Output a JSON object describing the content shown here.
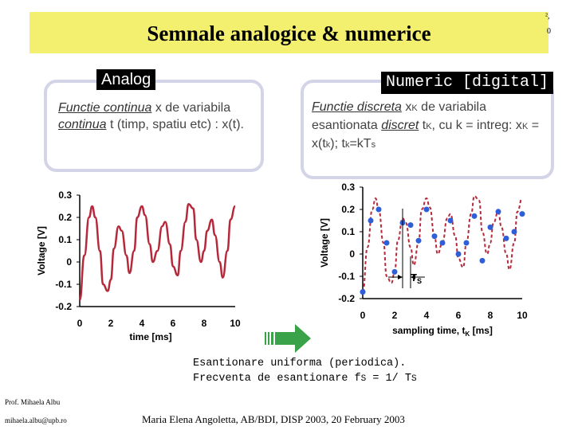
{
  "slide": {
    "title": "Semnale analogice & numerice",
    "corner_1": "²,",
    "corner_2": "0"
  },
  "analog": {
    "label": "Analog",
    "desc_em1": "Functie continua",
    "desc_t1": " x de variabila ",
    "desc_em2": "continua",
    "desc_t2": " t (timp, spatiu etc) : x(t)."
  },
  "digital": {
    "label": "Numeric [digital]",
    "desc_em1": "Functie discreta",
    "desc_t1": " x",
    "desc_s1": "K",
    "desc_t2": " de variabila esantionata ",
    "desc_em2": "discret",
    "desc_t3": "  t",
    "desc_s2": "K",
    "desc_t4": ", cu k = intreg: x",
    "desc_s3": "K",
    "desc_t5": " = x(t",
    "desc_s4": "k",
    "desc_t6": "); t",
    "desc_s5": "k",
    "desc_t7": "=kT",
    "desc_s6": "s"
  },
  "note": {
    "line1": "Esantionare uniforma (periodica).",
    "line2_a": "Frecventa de esantionare f",
    "line2_s1": "S",
    "line2_b": " = 1/ T",
    "line2_s2": "S"
  },
  "footer": {
    "prof_name": "Prof. Mihaela Albu",
    "prof_email": "mihaela.albu@upb.ro",
    "citation": "Maria Elena Angoletta, AB/BDI, DISP 2003, 20 February 2003"
  },
  "colors": {
    "title_bg": "#f2f06e",
    "curve": "#b5293a",
    "samples": "#2e5fd8",
    "arrow": "#3aa34a"
  },
  "chart_data": [
    {
      "type": "line",
      "xlabel": "time [ms]",
      "ylabel": "Voltage [V]",
      "xlim": [
        0,
        10
      ],
      "ylim": [
        -0.2,
        0.3
      ],
      "xticks": [
        "0",
        "2",
        "4",
        "6",
        "8",
        "10"
      ],
      "yticks": [
        "0.3",
        "0.2",
        "0.1",
        "0",
        "-0.1",
        "-0.2"
      ],
      "series": [
        {
          "x": [
            0.0,
            0.3,
            0.6,
            0.8,
            1.0,
            1.3,
            1.5,
            1.8,
            2.0,
            2.2,
            2.5,
            2.7,
            3.0,
            3.2,
            3.5,
            3.7,
            4.0,
            4.2,
            4.5,
            4.7,
            5.0,
            5.3,
            5.5,
            5.8,
            6.0,
            6.3,
            6.5,
            6.8,
            7.0,
            7.3,
            7.5,
            7.8,
            8.0,
            8.2,
            8.5,
            8.7,
            9.0,
            9.2,
            9.5,
            9.7,
            10.0
          ],
          "y": [
            -0.17,
            0.03,
            0.2,
            0.25,
            0.2,
            0.05,
            -0.1,
            -0.13,
            -0.08,
            0.06,
            0.16,
            0.14,
            0.03,
            -0.05,
            0.05,
            0.2,
            0.25,
            0.21,
            0.08,
            0.0,
            0.05,
            0.16,
            0.18,
            0.08,
            -0.02,
            -0.06,
            0.05,
            0.18,
            0.26,
            0.24,
            0.1,
            0.0,
            0.05,
            0.14,
            0.19,
            0.12,
            0.0,
            -0.07,
            0.05,
            0.19,
            0.25
          ]
        }
      ]
    },
    {
      "type": "scatter",
      "xlabel": "sampling time, t",
      "xlabel_sub": "K",
      "xlabel_unit": " [ms]",
      "ylabel": "Voltage [V]",
      "xlim": [
        0,
        10
      ],
      "ylim": [
        -0.2,
        0.3
      ],
      "xticks": [
        "0",
        "2",
        "4",
        "6",
        "8",
        "10"
      ],
      "yticks": [
        "0.3",
        "0.2",
        "0.1",
        "0",
        "-0.1",
        "-0.2"
      ],
      "annotation": "T",
      "annotation_sub": "S",
      "series": [
        {
          "x": [
            0.0,
            0.5,
            1.0,
            1.5,
            2.0,
            2.5,
            3.0,
            3.5,
            4.0,
            4.5,
            5.0,
            5.5,
            6.0,
            6.5,
            7.0,
            7.5,
            8.0,
            8.5,
            9.0,
            9.5,
            10.0
          ],
          "y": [
            -0.17,
            0.15,
            0.2,
            0.05,
            -0.08,
            0.14,
            0.13,
            0.06,
            0.2,
            0.08,
            0.05,
            0.15,
            0.0,
            0.05,
            0.17,
            -0.03,
            0.12,
            0.19,
            0.07,
            0.1,
            0.18
          ]
        }
      ]
    }
  ]
}
